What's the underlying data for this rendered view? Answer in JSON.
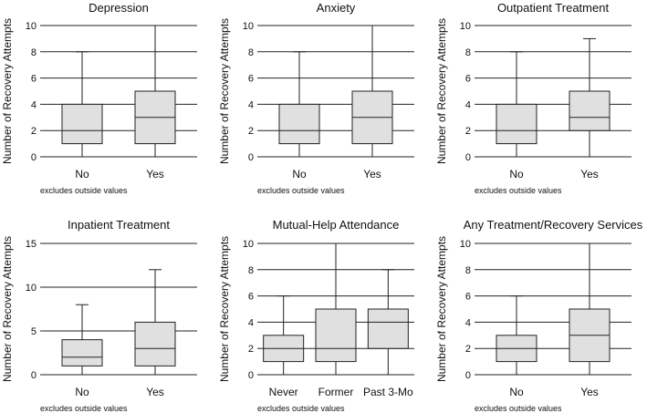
{
  "colors": {
    "box_fill": "#e0e0e0",
    "stroke": "#222222",
    "grid": "#222222",
    "text": "#111111",
    "background": "#ffffff"
  },
  "chart_data": [
    {
      "type": "box",
      "title": "Depression",
      "ylabel": "Number of Recovery Attempts",
      "note": "excludes outside values",
      "ylim": [
        0,
        10
      ],
      "yticks": [
        0,
        2,
        4,
        6,
        8,
        10
      ],
      "grid": true,
      "categories": [
        "No",
        "Yes"
      ],
      "boxes": [
        {
          "category": "No",
          "min": 0,
          "q1": 1,
          "median": 2,
          "q3": 4,
          "max": 8
        },
        {
          "category": "Yes",
          "min": 0,
          "q1": 1,
          "median": 3,
          "q3": 5,
          "max": 10
        }
      ]
    },
    {
      "type": "box",
      "title": "Anxiety",
      "ylabel": "Number of Recovery Attempts",
      "note": "excludes outside values",
      "ylim": [
        0,
        10
      ],
      "yticks": [
        0,
        2,
        4,
        6,
        8,
        10
      ],
      "grid": true,
      "categories": [
        "No",
        "Yes"
      ],
      "boxes": [
        {
          "category": "No",
          "min": 0,
          "q1": 1,
          "median": 2,
          "q3": 4,
          "max": 8
        },
        {
          "category": "Yes",
          "min": 0,
          "q1": 1,
          "median": 3,
          "q3": 5,
          "max": 10
        }
      ]
    },
    {
      "type": "box",
      "title": "Outpatient Treatment",
      "ylabel": "Number of Recovery Attempts",
      "note": "excludes outside values",
      "ylim": [
        0,
        10
      ],
      "yticks": [
        0,
        2,
        4,
        6,
        8,
        10
      ],
      "grid": true,
      "categories": [
        "No",
        "Yes"
      ],
      "boxes": [
        {
          "category": "No",
          "min": 0,
          "q1": 1,
          "median": 2,
          "q3": 4,
          "max": 8
        },
        {
          "category": "Yes",
          "min": 0,
          "q1": 2,
          "median": 3,
          "q3": 5,
          "max": 9
        }
      ]
    },
    {
      "type": "box",
      "title": "Inpatient Treatment",
      "ylabel": "Number of Recovery Attempts",
      "note": "excludes outside values",
      "ylim": [
        0,
        15
      ],
      "yticks": [
        0,
        5,
        10,
        15
      ],
      "grid": true,
      "categories": [
        "No",
        "Yes"
      ],
      "boxes": [
        {
          "category": "No",
          "min": 0,
          "q1": 1,
          "median": 2,
          "q3": 4,
          "max": 8
        },
        {
          "category": "Yes",
          "min": 0,
          "q1": 1,
          "median": 3,
          "q3": 6,
          "max": 12
        }
      ]
    },
    {
      "type": "box",
      "title": "Mutual-Help Attendance",
      "ylabel": "Number of Recovery Attempts",
      "note": "excludes outside values",
      "ylim": [
        0,
        10
      ],
      "yticks": [
        0,
        2,
        4,
        6,
        8,
        10
      ],
      "grid": true,
      "categories": [
        "Never",
        "Former",
        "Past 3-Mo"
      ],
      "boxes": [
        {
          "category": "Never",
          "min": 0,
          "q1": 1,
          "median": 2,
          "q3": 3,
          "max": 6
        },
        {
          "category": "Former",
          "min": 0,
          "q1": 1,
          "median": 2,
          "q3": 5,
          "max": 10
        },
        {
          "category": "Past 3-Mo",
          "min": 0,
          "q1": 2,
          "median": 4,
          "q3": 5,
          "max": 8
        }
      ]
    },
    {
      "type": "box",
      "title": "Any Treatment/Recovery Services",
      "ylabel": "Number of Recovery Attempts",
      "note": "excludes outside values",
      "ylim": [
        0,
        10
      ],
      "yticks": [
        0,
        2,
        4,
        6,
        8,
        10
      ],
      "grid": true,
      "categories": [
        "No",
        "Yes"
      ],
      "boxes": [
        {
          "category": "No",
          "min": 0,
          "q1": 1,
          "median": 2,
          "q3": 3,
          "max": 6
        },
        {
          "category": "Yes",
          "min": 0,
          "q1": 1,
          "median": 3,
          "q3": 5,
          "max": 10
        }
      ]
    }
  ]
}
